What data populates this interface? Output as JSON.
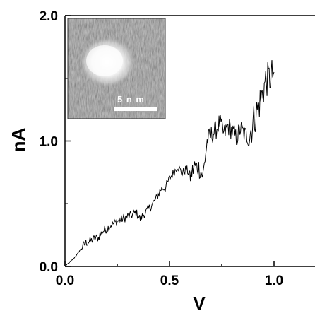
{
  "chart_data": {
    "type": "line",
    "xlabel": "V",
    "ylabel": "nA",
    "xlim": [
      0.0,
      1.2
    ],
    "ylim": [
      0.0,
      2.0
    ],
    "x_ticks": [
      0.0,
      0.5,
      1.0
    ],
    "x_tick_labels": [
      "0.0",
      "0.5",
      "1.0"
    ],
    "y_ticks": [
      0.0,
      1.0,
      2.0
    ],
    "y_tick_labels": [
      "0.0",
      "1.0",
      "2.0"
    ],
    "grid": false,
    "series": [
      {
        "color": "#000000",
        "x": [
          0.0,
          0.02,
          0.04,
          0.06,
          0.08,
          0.1,
          0.12,
          0.14,
          0.16,
          0.18,
          0.2,
          0.22,
          0.24,
          0.26,
          0.28,
          0.3,
          0.32,
          0.34,
          0.36,
          0.38,
          0.4,
          0.42,
          0.44,
          0.46,
          0.48,
          0.5,
          0.52,
          0.54,
          0.56,
          0.58,
          0.6,
          0.62,
          0.64,
          0.66,
          0.68,
          0.7,
          0.72,
          0.74,
          0.76,
          0.78,
          0.8,
          0.82,
          0.84,
          0.86,
          0.88,
          0.9,
          0.92,
          0.94,
          0.96,
          0.98,
          1.0
        ],
        "y": [
          0.0,
          0.03,
          0.06,
          0.1,
          0.15,
          0.19,
          0.2,
          0.22,
          0.23,
          0.28,
          0.3,
          0.33,
          0.35,
          0.37,
          0.38,
          0.4,
          0.41,
          0.43,
          0.38,
          0.42,
          0.46,
          0.5,
          0.55,
          0.62,
          0.63,
          0.7,
          0.75,
          0.8,
          0.74,
          0.78,
          0.72,
          0.8,
          0.79,
          0.72,
          1.0,
          1.05,
          1.08,
          1.15,
          1.05,
          1.12,
          1.08,
          1.02,
          1.1,
          1.05,
          1.03,
          1.15,
          1.25,
          1.35,
          1.48,
          1.5,
          1.55
        ]
      }
    ],
    "inset": {
      "type": "image",
      "description": "STM topograph",
      "scale_bar_label": "5 n m"
    }
  }
}
